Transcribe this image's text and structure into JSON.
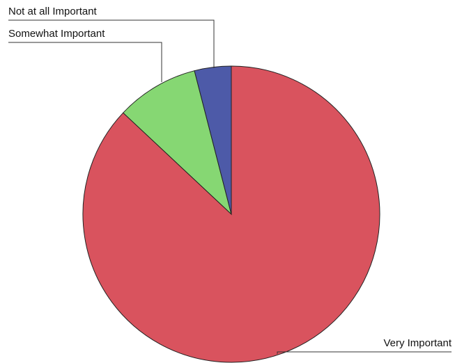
{
  "chart_data": {
    "type": "pie",
    "title": "",
    "legend": "none",
    "slices": [
      {
        "label": "Very Important",
        "value": 87,
        "color": "#d9535e"
      },
      {
        "label": "Somewhat Important",
        "value": 9,
        "color": "#86d773"
      },
      {
        "label": "Not at all Important",
        "value": 4,
        "color": "#4d5aa8"
      }
    ]
  }
}
